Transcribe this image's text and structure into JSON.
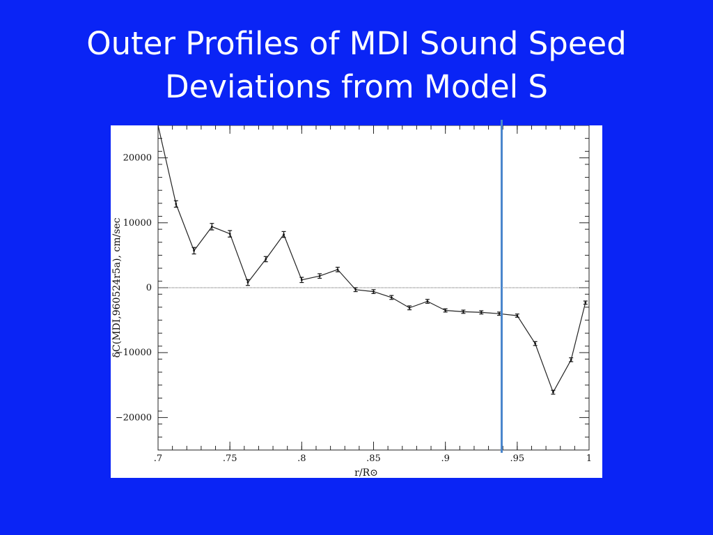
{
  "slide": {
    "title_line1": "Outer Profiles of MDI Sound Speed",
    "title_line2": "Deviations from Model S"
  },
  "colors": {
    "background": "#0a24f5",
    "title_text": "#ffffff",
    "plot_background": "#ffffff",
    "marker_line": "#4a86cc",
    "series_line": "#222222"
  },
  "chart_data": {
    "type": "line",
    "title": "",
    "xlabel": "r/R⊙",
    "ylabel": "δC(MDI,960524r5a), cm/sec",
    "xlim": [
      0.7,
      1.0
    ],
    "ylim": [
      -25000,
      25000
    ],
    "x_ticks": [
      0.7,
      0.75,
      0.8,
      0.85,
      0.9,
      0.95,
      1.0
    ],
    "x_tick_labels": [
      ".7",
      ".75",
      ".8",
      ".85",
      ".9",
      ".95",
      "1"
    ],
    "y_ticks": [
      20000,
      10000,
      0,
      -10000,
      -20000
    ],
    "y_tick_labels": [
      "20000",
      "10000",
      "0",
      "−10000",
      "−20000"
    ],
    "zero_reference_line": true,
    "grid": false,
    "vertical_marker_x": 0.94,
    "series": [
      {
        "error_bars": true,
        "x": [
          0.7,
          0.7125,
          0.725,
          0.7375,
          0.75,
          0.7625,
          0.775,
          0.7875,
          0.8,
          0.8125,
          0.825,
          0.8375,
          0.85,
          0.8625,
          0.875,
          0.8875,
          0.9,
          0.9125,
          0.925,
          0.9375,
          0.95,
          0.9625,
          0.975,
          0.9875,
          0.9975
        ],
        "y": [
          25000,
          12900,
          5700,
          9400,
          8300,
          800,
          4400,
          8200,
          1200,
          1800,
          2800,
          -300,
          -600,
          -1500,
          -3100,
          -2100,
          -3500,
          -3700,
          -3800,
          -4000,
          -4300,
          -8600,
          -16100,
          -11100,
          -2300
        ],
        "err": [
          0,
          500,
          500,
          500,
          500,
          450,
          400,
          450,
          400,
          350,
          350,
          300,
          300,
          300,
          300,
          300,
          250,
          250,
          250,
          250,
          250,
          300,
          300,
          300,
          250
        ]
      }
    ]
  }
}
